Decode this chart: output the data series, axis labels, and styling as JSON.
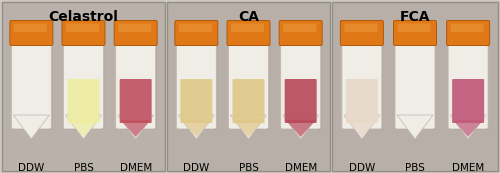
{
  "figsize": [
    5.0,
    1.73
  ],
  "dpi": 100,
  "fig_bg": "#d0c8c0",
  "panel_bg": "#c8c0b8",
  "panel_titles": [
    "Celastrol",
    "CA",
    "FCA"
  ],
  "panel_labels": [
    [
      "DDW",
      "PBS",
      "DMEM"
    ],
    [
      "DDW",
      "PBS",
      "DMEM"
    ],
    [
      "DDW",
      "PBS",
      "DMEM"
    ]
  ],
  "title_fontsize": 10,
  "label_fontsize": 7.5,
  "title_fontweight": "bold",
  "panels": [
    {
      "bg": "#bab2aa",
      "tubes": [
        {
          "liquid_color": null
        },
        {
          "liquid_color": "#eeeea0"
        },
        {
          "liquid_color": "#c05060"
        }
      ]
    },
    {
      "bg": "#b8b0a8",
      "tubes": [
        {
          "liquid_color": "#dfc888"
        },
        {
          "liquid_color": "#dfc888"
        },
        {
          "liquid_color": "#b84858"
        }
      ]
    },
    {
      "bg": "#b8b0a8",
      "tubes": [
        {
          "liquid_color": "#e8d8c8"
        },
        {
          "liquid_color": null
        },
        {
          "liquid_color": "#c05878"
        }
      ]
    }
  ],
  "cap_color": "#e07818",
  "cap_edge": "#b05808",
  "tube_body": "#f0ece6",
  "tube_edge": "#c0b8b0",
  "border_color": "#909088"
}
